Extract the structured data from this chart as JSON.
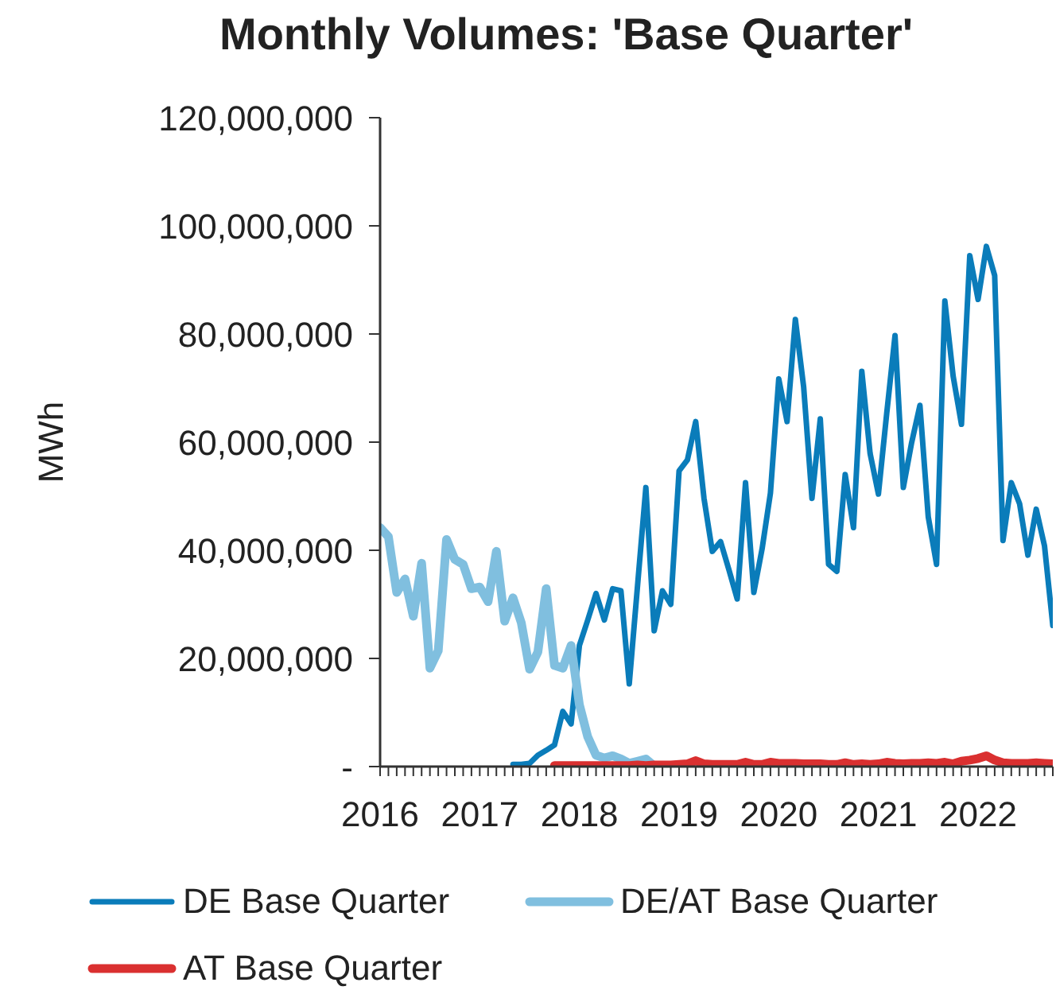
{
  "chart_data": {
    "type": "line",
    "title": "Monthly Volumes: 'Base Quarter'",
    "ylabel": "MWh",
    "x": [
      "2016-01",
      "2016-02",
      "2016-03",
      "2016-04",
      "2016-05",
      "2016-06",
      "2016-07",
      "2016-08",
      "2016-09",
      "2016-10",
      "2016-11",
      "2016-12",
      "2017-01",
      "2017-02",
      "2017-03",
      "2017-04",
      "2017-05",
      "2017-06",
      "2017-07",
      "2017-08",
      "2017-09",
      "2017-10",
      "2017-11",
      "2017-12",
      "2018-01",
      "2018-02",
      "2018-03",
      "2018-04",
      "2018-05",
      "2018-06",
      "2018-07",
      "2018-08",
      "2018-09",
      "2018-10",
      "2018-11",
      "2018-12",
      "2019-01",
      "2019-02",
      "2019-03",
      "2019-04",
      "2019-05",
      "2019-06",
      "2019-07",
      "2019-08",
      "2019-09",
      "2019-10",
      "2019-11",
      "2019-12",
      "2020-01",
      "2020-02",
      "2020-03",
      "2020-04",
      "2020-05",
      "2020-06",
      "2020-07",
      "2020-08",
      "2020-09",
      "2020-10",
      "2020-11",
      "2020-12",
      "2021-01",
      "2021-02",
      "2021-03",
      "2021-04",
      "2021-05",
      "2021-06",
      "2021-07",
      "2021-08",
      "2021-09",
      "2021-10",
      "2021-11",
      "2021-12",
      "2022-01",
      "2022-02",
      "2022-03",
      "2022-04",
      "2022-05",
      "2022-06",
      "2022-07",
      "2022-08",
      "2022-09",
      "2022-10"
    ],
    "series": [
      {
        "name": "DE Base Quarter",
        "color": "#0a7cba",
        "values": [
          null,
          null,
          null,
          null,
          null,
          null,
          null,
          null,
          null,
          null,
          null,
          null,
          null,
          null,
          null,
          null,
          400000,
          400000,
          600000,
          2100000,
          3000000,
          4000000,
          10200000,
          7900000,
          22400000,
          27100000,
          32000000,
          27100000,
          32900000,
          32500000,
          15300000,
          33500000,
          51600000,
          25100000,
          32500000,
          30000000,
          54700000,
          56700000,
          63800000,
          49600000,
          39800000,
          41600000,
          36400000,
          31000000,
          52500000,
          32200000,
          40300000,
          50600000,
          71700000,
          63800000,
          82700000,
          70200000,
          49600000,
          64300000,
          37400000,
          36100000,
          54000000,
          44200000,
          73100000,
          57900000,
          50400000,
          65300000,
          79700000,
          51600000,
          59900000,
          66800000,
          46200000,
          37400000,
          86100000,
          72200000,
          63300000,
          94500000,
          86400000,
          96200000,
          90800000,
          41800000,
          52500000,
          48600000,
          39100000,
          47600000,
          40800000,
          26100000
        ]
      },
      {
        "name": "DE/AT Base Quarter",
        "color": "#80bfdf",
        "values": [
          44200000,
          42500000,
          32200000,
          34700000,
          27800000,
          37600000,
          18200000,
          21400000,
          42000000,
          38300000,
          37400000,
          32900000,
          33200000,
          30500000,
          39800000,
          26900000,
          31200000,
          26600000,
          18000000,
          21200000,
          32900000,
          18700000,
          18200000,
          22400000,
          11400000,
          5500000,
          2100000,
          1600000,
          2000000,
          1400000,
          600000,
          1000000,
          1400000,
          100000,
          null,
          null,
          null,
          null,
          null,
          null,
          null,
          null,
          null,
          null,
          null,
          null,
          null,
          null,
          null,
          null,
          null,
          null,
          null,
          null,
          null,
          null,
          null,
          null,
          null,
          null,
          null,
          null,
          null,
          null,
          null,
          null,
          null,
          null,
          null,
          null,
          null,
          null,
          null,
          null,
          null,
          null,
          null,
          null,
          null,
          null,
          null,
          null
        ]
      },
      {
        "name": "AT Base Quarter",
        "color": "#da3030",
        "values": [
          null,
          null,
          null,
          null,
          null,
          null,
          null,
          null,
          null,
          null,
          null,
          null,
          null,
          null,
          null,
          null,
          null,
          null,
          null,
          null,
          null,
          200000,
          200000,
          200000,
          200000,
          200000,
          200000,
          200000,
          200000,
          200000,
          200000,
          300000,
          200000,
          300000,
          300000,
          300000,
          400000,
          500000,
          1100000,
          500000,
          400000,
          400000,
          400000,
          400000,
          800000,
          400000,
          400000,
          800000,
          600000,
          600000,
          600000,
          500000,
          500000,
          500000,
          400000,
          400000,
          700000,
          400000,
          500000,
          400000,
          500000,
          800000,
          600000,
          500000,
          600000,
          600000,
          700000,
          600000,
          800000,
          500000,
          1000000,
          1200000,
          1500000,
          2000000,
          1200000,
          700000,
          600000,
          600000,
          600000,
          700000,
          600000,
          500000
        ]
      }
    ],
    "xlim": [
      "2016-01",
      "2022-10"
    ],
    "xticks": [
      {
        "value": "2016-01",
        "label": "2016"
      },
      {
        "value": "2016-02",
        "label": null
      },
      {
        "value": "2016-03",
        "label": null
      },
      {
        "value": "2016-04",
        "label": null
      },
      {
        "value": "2016-05",
        "label": null
      },
      {
        "value": "2016-06",
        "label": null
      },
      {
        "value": "2016-07",
        "label": null
      },
      {
        "value": "2016-08",
        "label": null
      },
      {
        "value": "2016-09",
        "label": null
      },
      {
        "value": "2016-10",
        "label": null
      },
      {
        "value": "2016-11",
        "label": null
      },
      {
        "value": "2016-12",
        "label": null
      },
      {
        "value": "2017-01",
        "label": "2017"
      },
      {
        "value": "2017-02",
        "label": null
      },
      {
        "value": "2017-03",
        "label": null
      },
      {
        "value": "2017-04",
        "label": null
      },
      {
        "value": "2017-05",
        "label": null
      },
      {
        "value": "2017-06",
        "label": null
      },
      {
        "value": "2017-07",
        "label": null
      },
      {
        "value": "2017-08",
        "label": null
      },
      {
        "value": "2017-09",
        "label": null
      },
      {
        "value": "2017-10",
        "label": null
      },
      {
        "value": "2017-11",
        "label": null
      },
      {
        "value": "2017-12",
        "label": null
      },
      {
        "value": "2018-01",
        "label": "2018"
      },
      {
        "value": "2018-02",
        "label": null
      },
      {
        "value": "2018-03",
        "label": null
      },
      {
        "value": "2018-04",
        "label": null
      },
      {
        "value": "2018-05",
        "label": null
      },
      {
        "value": "2018-06",
        "label": null
      },
      {
        "value": "2018-07",
        "label": null
      },
      {
        "value": "2018-08",
        "label": null
      },
      {
        "value": "2018-09",
        "label": null
      },
      {
        "value": "2018-10",
        "label": null
      },
      {
        "value": "2018-11",
        "label": null
      },
      {
        "value": "2018-12",
        "label": null
      },
      {
        "value": "2019-01",
        "label": "2019"
      },
      {
        "value": "2019-02",
        "label": null
      },
      {
        "value": "2019-03",
        "label": null
      },
      {
        "value": "2019-04",
        "label": null
      },
      {
        "value": "2019-05",
        "label": null
      },
      {
        "value": "2019-06",
        "label": null
      },
      {
        "value": "2019-07",
        "label": null
      },
      {
        "value": "2019-08",
        "label": null
      },
      {
        "value": "2019-09",
        "label": null
      },
      {
        "value": "2019-10",
        "label": null
      },
      {
        "value": "2019-11",
        "label": null
      },
      {
        "value": "2019-12",
        "label": null
      },
      {
        "value": "2020-01",
        "label": "2020"
      },
      {
        "value": "2020-02",
        "label": null
      },
      {
        "value": "2020-03",
        "label": null
      },
      {
        "value": "2020-04",
        "label": null
      },
      {
        "value": "2020-05",
        "label": null
      },
      {
        "value": "2020-06",
        "label": null
      },
      {
        "value": "2020-07",
        "label": null
      },
      {
        "value": "2020-08",
        "label": null
      },
      {
        "value": "2020-09",
        "label": null
      },
      {
        "value": "2020-10",
        "label": null
      },
      {
        "value": "2020-11",
        "label": null
      },
      {
        "value": "2020-12",
        "label": null
      },
      {
        "value": "2021-01",
        "label": "2021"
      },
      {
        "value": "2021-02",
        "label": null
      },
      {
        "value": "2021-03",
        "label": null
      },
      {
        "value": "2021-04",
        "label": null
      },
      {
        "value": "2021-05",
        "label": null
      },
      {
        "value": "2021-06",
        "label": null
      },
      {
        "value": "2021-07",
        "label": null
      },
      {
        "value": "2021-08",
        "label": null
      },
      {
        "value": "2021-09",
        "label": null
      },
      {
        "value": "2021-10",
        "label": null
      },
      {
        "value": "2021-11",
        "label": null
      },
      {
        "value": "2021-12",
        "label": null
      },
      {
        "value": "2022-01",
        "label": "2022"
      },
      {
        "value": "2022-02",
        "label": null
      },
      {
        "value": "2022-03",
        "label": null
      },
      {
        "value": "2022-04",
        "label": null
      },
      {
        "value": "2022-05",
        "label": null
      },
      {
        "value": "2022-06",
        "label": null
      },
      {
        "value": "2022-07",
        "label": null
      },
      {
        "value": "2022-08",
        "label": null
      },
      {
        "value": "2022-09",
        "label": null
      },
      {
        "value": "2022-10",
        "label": null
      }
    ],
    "ylim": [
      0,
      120000000
    ],
    "yticks": [
      {
        "value": 0,
        "label": "-"
      },
      {
        "value": 20000000,
        "label": "20,000,000"
      },
      {
        "value": 40000000,
        "label": "40,000,000"
      },
      {
        "value": 60000000,
        "label": "60,000,000"
      },
      {
        "value": 80000000,
        "label": "80,000,000"
      },
      {
        "value": 100000000,
        "label": "100,000,000"
      },
      {
        "value": 120000000,
        "label": "120,000,000"
      }
    ],
    "legend": "bottom"
  }
}
